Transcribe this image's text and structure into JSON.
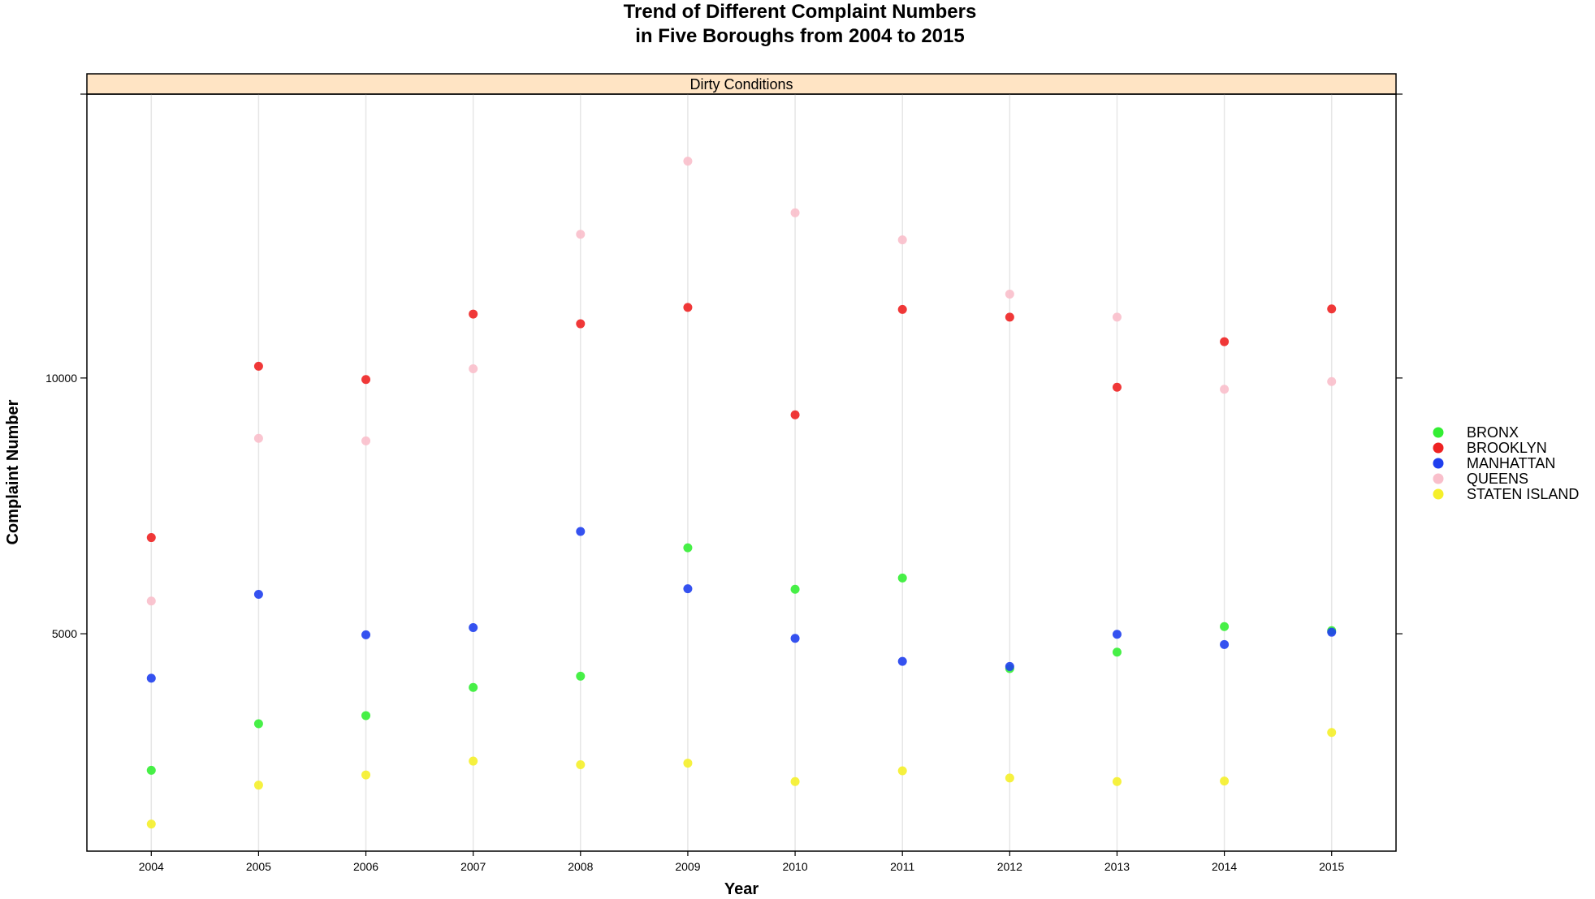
{
  "chart_data": {
    "type": "scatter",
    "title_lines": [
      "Trend of Different Complaint Numbers",
      "in Five Boroughs from 2004 to 2015"
    ],
    "panel_label": "Dirty Conditions",
    "xlabel": "Year",
    "ylabel": "Complaint Number",
    "x": [
      2004,
      2005,
      2006,
      2007,
      2008,
      2009,
      2010,
      2011,
      2012,
      2013,
      2014,
      2015
    ],
    "xlim": [
      2003.4,
      2015.6
    ],
    "ylim": [
      750,
      15550
    ],
    "yticks": [
      5000,
      10000
    ],
    "grid": "vertical",
    "legend_position": "right",
    "series": [
      {
        "name": "BRONX",
        "color": "#33ee33",
        "values": [
          2330,
          3240,
          3400,
          3950,
          4170,
          6680,
          5870,
          6090,
          4320,
          4640,
          5140,
          5060
        ]
      },
      {
        "name": "BROOKLYN",
        "color": "#ee2222",
        "values": [
          6880,
          10230,
          9970,
          11250,
          11060,
          11380,
          9280,
          11340,
          11190,
          9820,
          10710,
          11350
        ]
      },
      {
        "name": "MANHATTAN",
        "color": "#1f3fee",
        "values": [
          4130,
          5770,
          4980,
          5120,
          7000,
          5880,
          4910,
          4460,
          4360,
          4990,
          4790,
          5030
        ]
      },
      {
        "name": "QUEENS",
        "color": "#f9bfcb",
        "values": [
          5640,
          8820,
          8770,
          10180,
          12810,
          14240,
          13230,
          12700,
          11640,
          11190,
          9780,
          9930
        ]
      },
      {
        "name": "STATEN ISLAND",
        "color": "#f5ef2a",
        "values": [
          1280,
          2040,
          2240,
          2510,
          2440,
          2470,
          2110,
          2320,
          2180,
          2110,
          2120,
          3070
        ]
      }
    ]
  }
}
